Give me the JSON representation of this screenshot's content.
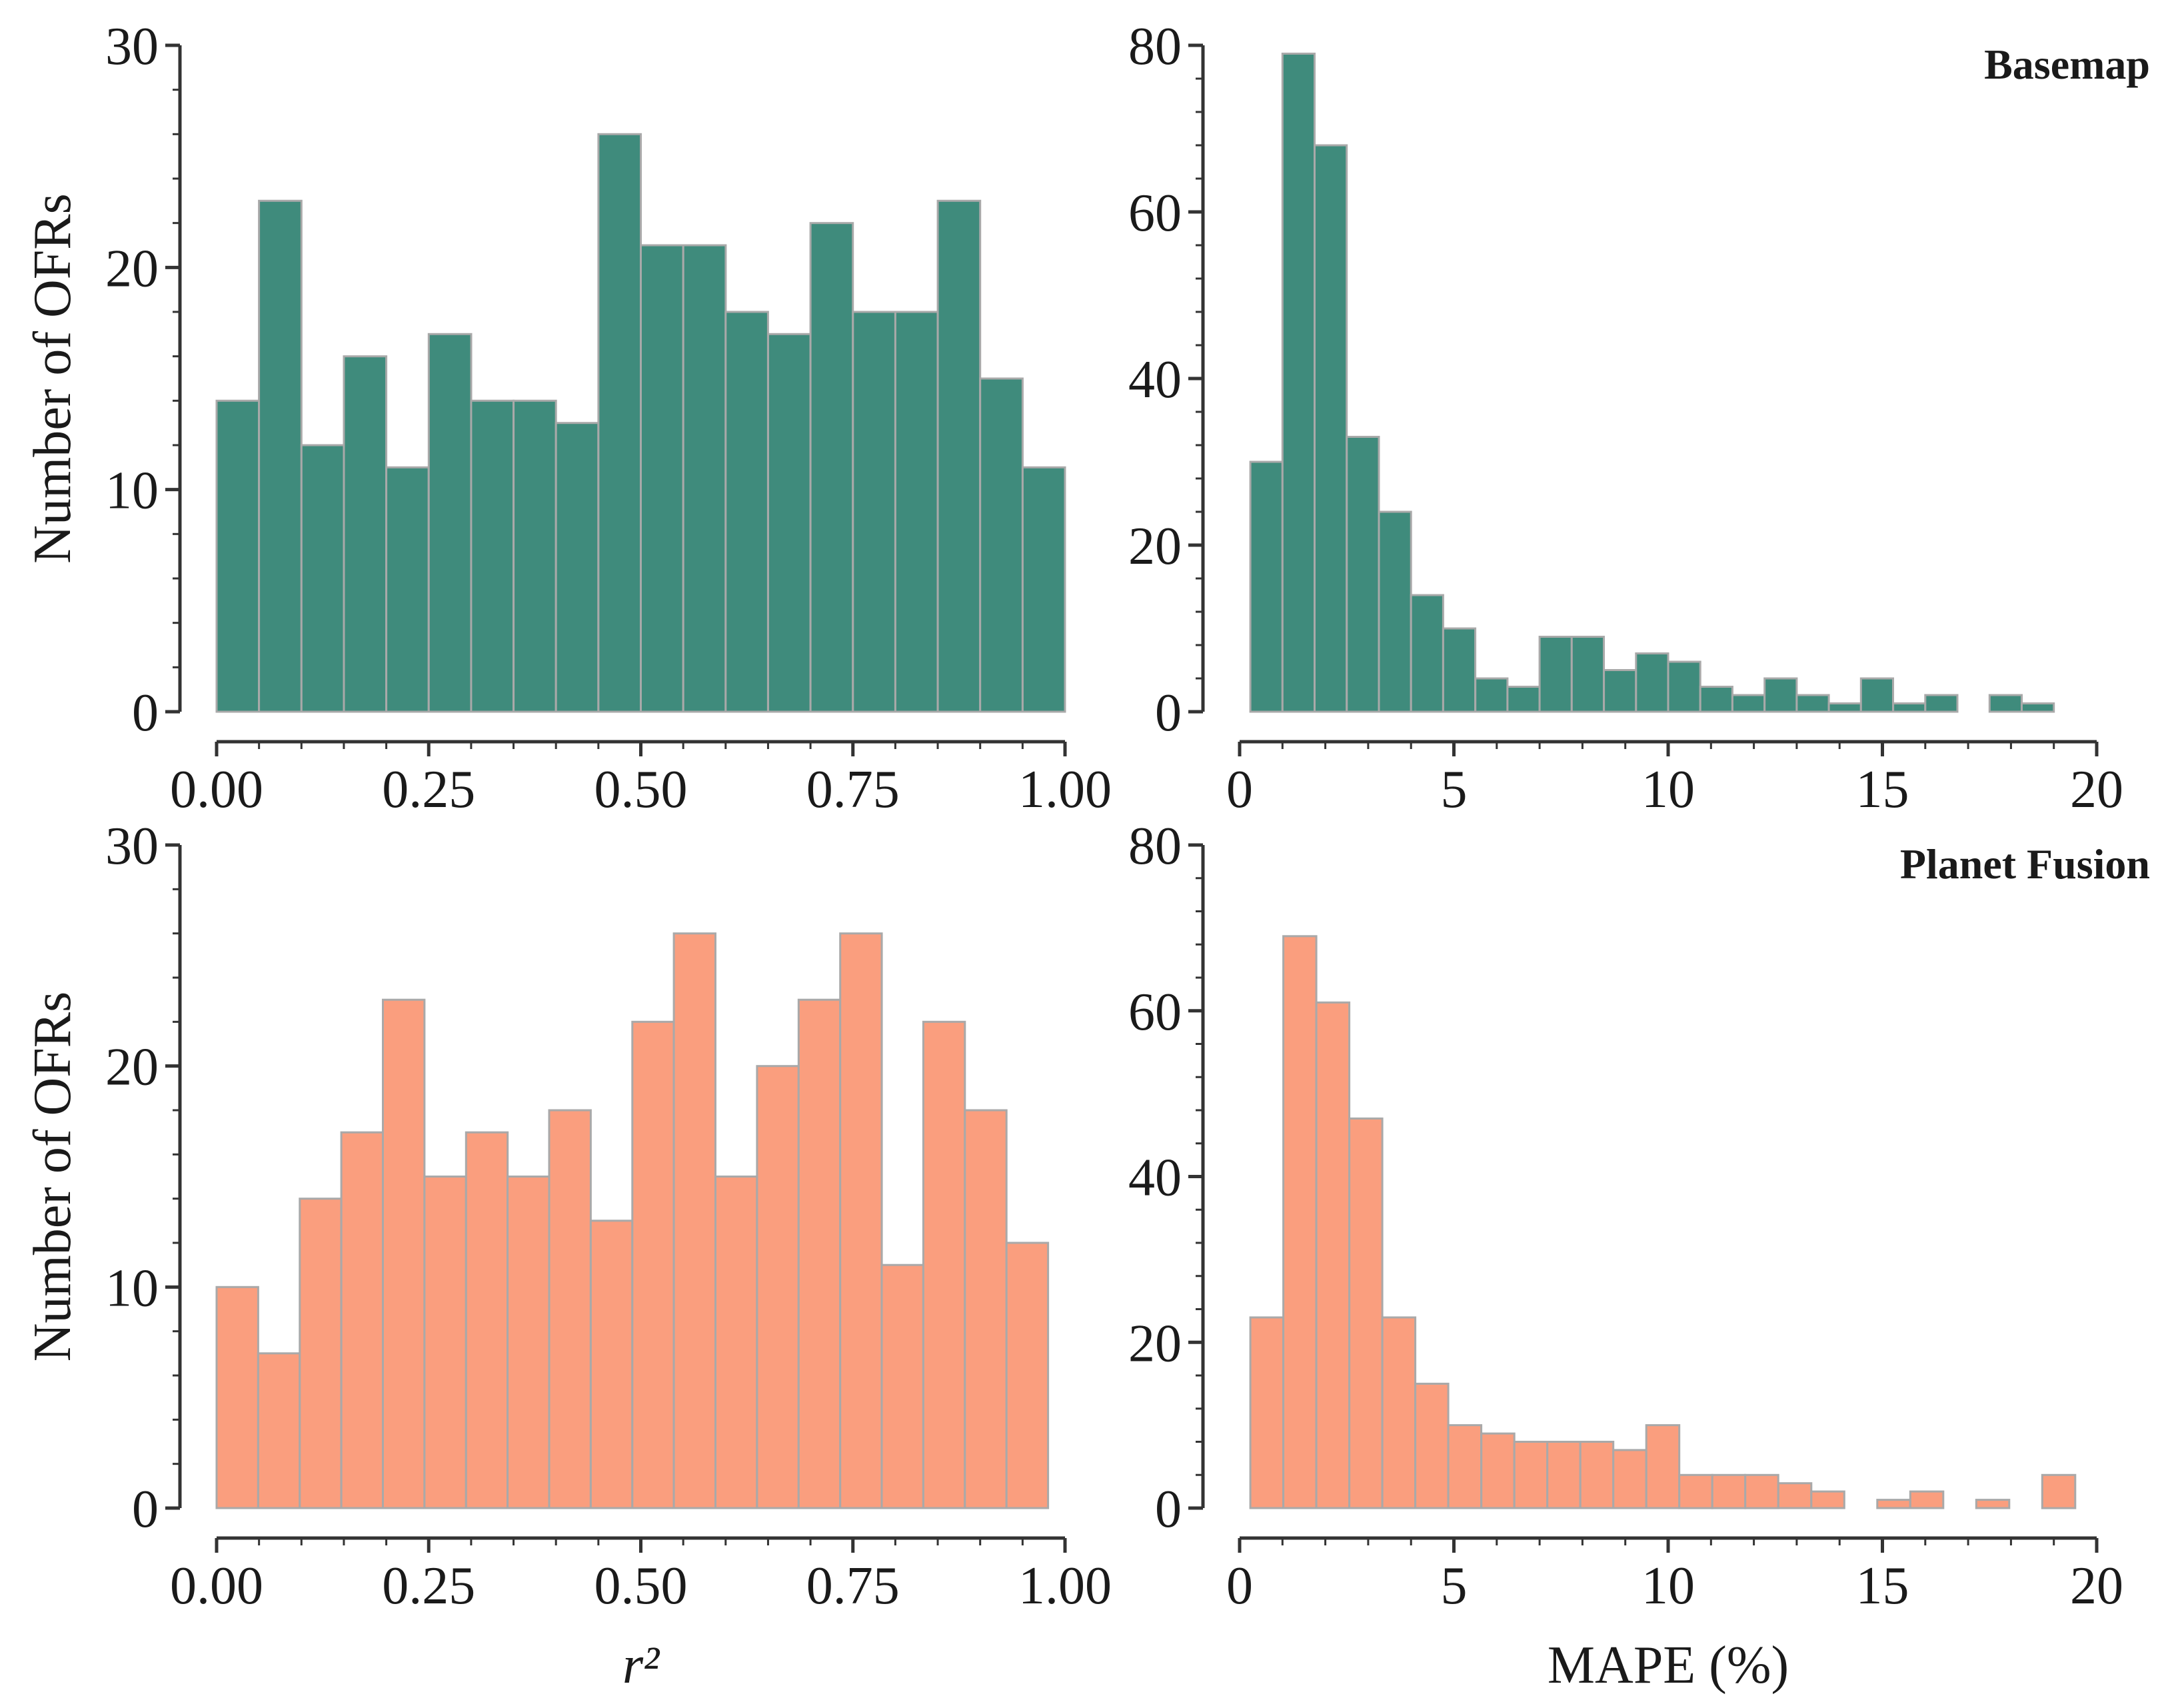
{
  "colors": {
    "basemap": "#3f8b7c",
    "planet_fusion": "#fa9e7e",
    "bar_edge": "#a9a9a9",
    "axis": "#333333"
  },
  "chart_data": [
    {
      "id": "r2-basemap",
      "type": "bar",
      "title": "",
      "xlabel": "",
      "ylabel": "Number of OFRs",
      "xlim": [
        0,
        1
      ],
      "ylim": [
        0,
        30
      ],
      "xticks": [
        0,
        0.25,
        0.5,
        0.75,
        1
      ],
      "xtick_labels": [
        "0.00",
        "0.25",
        "0.50",
        "0.75",
        "1.00"
      ],
      "yticks": [
        0,
        10,
        20,
        30
      ],
      "ytick_labels": [
        "0",
        "10",
        "20",
        "30"
      ],
      "bin_start": 0.0,
      "bin_width": 0.05,
      "values": [
        14,
        23,
        12,
        16,
        11,
        17,
        14,
        14,
        13,
        26,
        21,
        21,
        18,
        17,
        22,
        18,
        18,
        23,
        15,
        11
      ],
      "color_key": "basemap"
    },
    {
      "id": "mape-basemap",
      "type": "bar",
      "title": "Basemap",
      "xlabel": "",
      "ylabel": "",
      "xlim": [
        0,
        20
      ],
      "ylim": [
        0,
        80
      ],
      "xticks": [
        0,
        5,
        10,
        15,
        20
      ],
      "xtick_labels": [
        "0",
        "5",
        "10",
        "15",
        "20"
      ],
      "yticks": [
        0,
        20,
        40,
        60,
        80
      ],
      "ytick_labels": [
        "0",
        "20",
        "40",
        "60",
        "80"
      ],
      "bin_start": 0.25,
      "bin_width": 0.75,
      "values": [
        30,
        79,
        68,
        33,
        24,
        14,
        10,
        4,
        3,
        9,
        9,
        5,
        7,
        6,
        3,
        2,
        4,
        2,
        1,
        4,
        1,
        2,
        0,
        2,
        1
      ],
      "color_key": "basemap"
    },
    {
      "id": "r2-planet-fusion",
      "type": "bar",
      "title": "",
      "xlabel": "r²",
      "ylabel": "Number of OFRs",
      "xlim": [
        0,
        1
      ],
      "ylim": [
        0,
        30
      ],
      "xticks": [
        0,
        0.25,
        0.5,
        0.75,
        1
      ],
      "xtick_labels": [
        "0.00",
        "0.25",
        "0.50",
        "0.75",
        "1.00"
      ],
      "yticks": [
        0,
        10,
        20,
        30
      ],
      "ytick_labels": [
        "0",
        "10",
        "20",
        "30"
      ],
      "bin_start": 0.0,
      "bin_width": 0.049,
      "values": [
        10,
        7,
        14,
        17,
        23,
        15,
        17,
        15,
        18,
        13,
        22,
        26,
        15,
        20,
        23,
        26,
        11,
        22,
        18,
        12
      ],
      "color_key": "planet_fusion"
    },
    {
      "id": "mape-planet-fusion",
      "type": "bar",
      "title": "Planet Fusion",
      "xlabel": "MAPE (%)",
      "ylabel": "",
      "xlim": [
        0,
        20
      ],
      "ylim": [
        0,
        80
      ],
      "xticks": [
        0,
        5,
        10,
        15,
        20
      ],
      "xtick_labels": [
        "0",
        "5",
        "10",
        "15",
        "20"
      ],
      "yticks": [
        0,
        20,
        40,
        60,
        80
      ],
      "ytick_labels": [
        "0",
        "20",
        "40",
        "60",
        "80"
      ],
      "bin_start": 0.25,
      "bin_width": 0.77,
      "values": [
        23,
        69,
        61,
        47,
        23,
        15,
        10,
        9,
        8,
        8,
        8,
        7,
        10,
        4,
        4,
        4,
        3,
        2,
        0,
        1,
        2,
        0,
        1,
        0,
        4
      ],
      "color_key": "planet_fusion"
    }
  ]
}
